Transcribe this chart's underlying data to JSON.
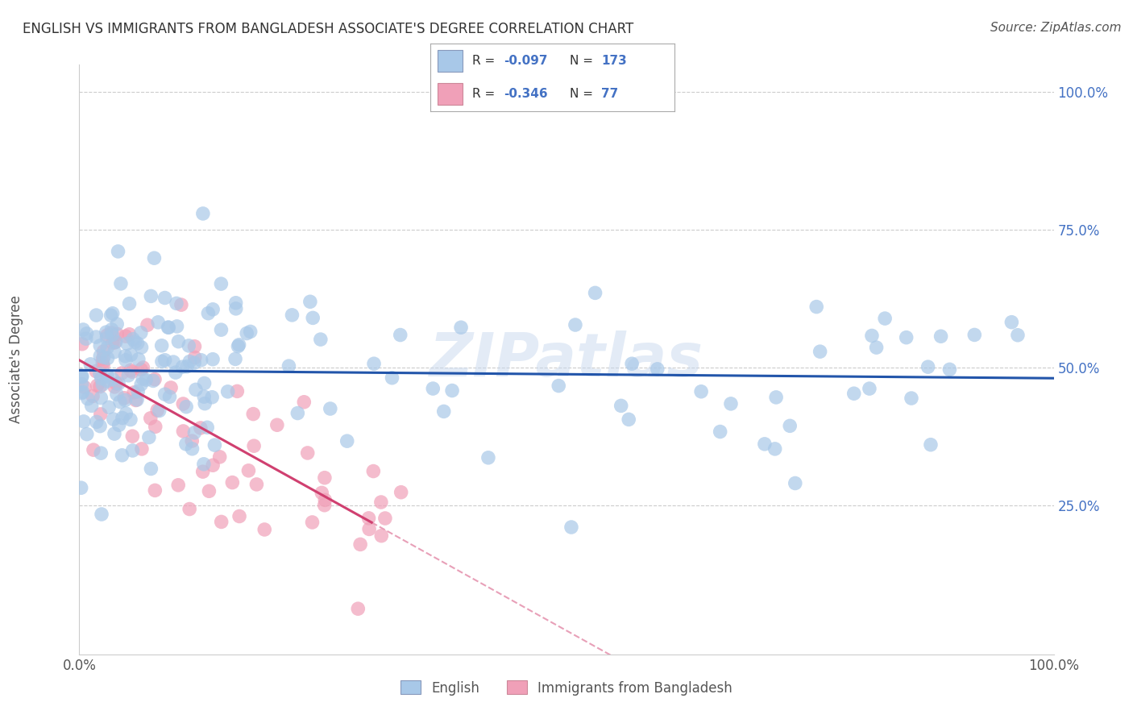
{
  "title": "ENGLISH VS IMMIGRANTS FROM BANGLADESH ASSOCIATE'S DEGREE CORRELATION CHART",
  "source": "Source: ZipAtlas.com",
  "ylabel": "Associate's Degree",
  "color_english": "#a8c8e8",
  "color_bangladesh": "#f0a0b8",
  "line_color_english": "#2255aa",
  "line_color_bangladesh": "#d04070",
  "line_color_bangladesh_dash": "#e8a0b8",
  "watermark": "ZIPatlas",
  "eng_R": "-0.097",
  "eng_N": "173",
  "ban_R": "-0.346",
  "ban_N": "77"
}
